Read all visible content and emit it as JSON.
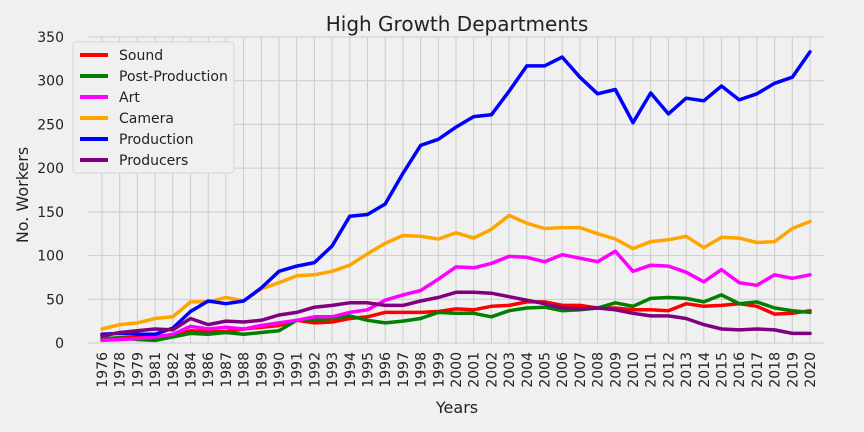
{
  "chart_data": {
    "type": "line",
    "title": "High Growth Departments",
    "xlabel": "Years",
    "ylabel": "No. Workers",
    "ylim": [
      0,
      350
    ],
    "yticks": [
      0,
      50,
      100,
      150,
      200,
      250,
      300,
      350
    ],
    "grid": true,
    "legend_position": "top-left",
    "x": [
      "1976",
      "1978",
      "1979",
      "1981",
      "1982",
      "1984",
      "1986",
      "1987",
      "1988",
      "1989",
      "1990",
      "1991",
      "1992",
      "1993",
      "1994",
      "1995",
      "1996",
      "1997",
      "1998",
      "1999",
      "2000",
      "2001",
      "2002",
      "2003",
      "2004",
      "2005",
      "2006",
      "2007",
      "2008",
      "2009",
      "2010",
      "2011",
      "2012",
      "2013",
      "2014",
      "2015",
      "2016",
      "2017",
      "2018",
      "2019",
      "2020"
    ],
    "series": [
      {
        "name": "Sound",
        "color": "#ff0000",
        "values": [
          4,
          6,
          6,
          7,
          9,
          14,
          13,
          13,
          16,
          18,
          20,
          26,
          23,
          24,
          28,
          30,
          35,
          35,
          35,
          36,
          39,
          38,
          42,
          43,
          47,
          47,
          43,
          43,
          40,
          40,
          38,
          38,
          37,
          45,
          42,
          43,
          45,
          42,
          33,
          34,
          37
        ]
      },
      {
        "name": "Post-Production",
        "color": "#008000",
        "values": [
          5,
          6,
          4,
          3,
          7,
          11,
          10,
          12,
          10,
          12,
          14,
          26,
          26,
          28,
          31,
          26,
          23,
          25,
          28,
          35,
          34,
          34,
          30,
          37,
          40,
          41,
          37,
          38,
          40,
          46,
          42,
          51,
          52,
          51,
          47,
          55,
          45,
          47,
          40,
          37,
          35
        ]
      },
      {
        "name": "Art",
        "color": "#ff00ff",
        "values": [
          3,
          4,
          5,
          7,
          10,
          19,
          16,
          18,
          16,
          20,
          23,
          26,
          30,
          30,
          35,
          38,
          49,
          55,
          60,
          73,
          87,
          86,
          91,
          99,
          98,
          93,
          101,
          97,
          93,
          105,
          82,
          89,
          88,
          81,
          70,
          84,
          69,
          66,
          78,
          74,
          78
        ]
      },
      {
        "name": "Camera",
        "color": "#ffa500",
        "values": [
          16,
          21,
          23,
          28,
          30,
          47,
          47,
          52,
          48,
          62,
          69,
          77,
          78,
          82,
          89,
          102,
          114,
          123,
          122,
          119,
          126,
          120,
          130,
          146,
          137,
          131,
          132,
          132,
          125,
          119,
          108,
          116,
          118,
          122,
          109,
          121,
          120,
          115,
          116,
          131,
          139
        ]
      },
      {
        "name": "Production",
        "color": "#0000ff",
        "values": [
          10,
          11,
          10,
          10,
          17,
          36,
          48,
          45,
          48,
          63,
          82,
          88,
          92,
          111,
          145,
          147,
          159,
          194,
          226,
          233,
          247,
          259,
          261,
          288,
          317,
          317,
          327,
          304,
          285,
          290,
          252,
          286,
          262,
          280,
          277,
          294,
          278,
          285,
          297,
          304,
          333
        ]
      },
      {
        "name": "Producers",
        "color": "#800080",
        "values": [
          8,
          12,
          14,
          16,
          15,
          28,
          21,
          25,
          24,
          26,
          32,
          35,
          41,
          43,
          46,
          46,
          43,
          43,
          48,
          52,
          58,
          58,
          57,
          53,
          49,
          45,
          40,
          39,
          40,
          38,
          34,
          31,
          31,
          28,
          21,
          16,
          15,
          16,
          15,
          11,
          11
        ]
      }
    ]
  }
}
